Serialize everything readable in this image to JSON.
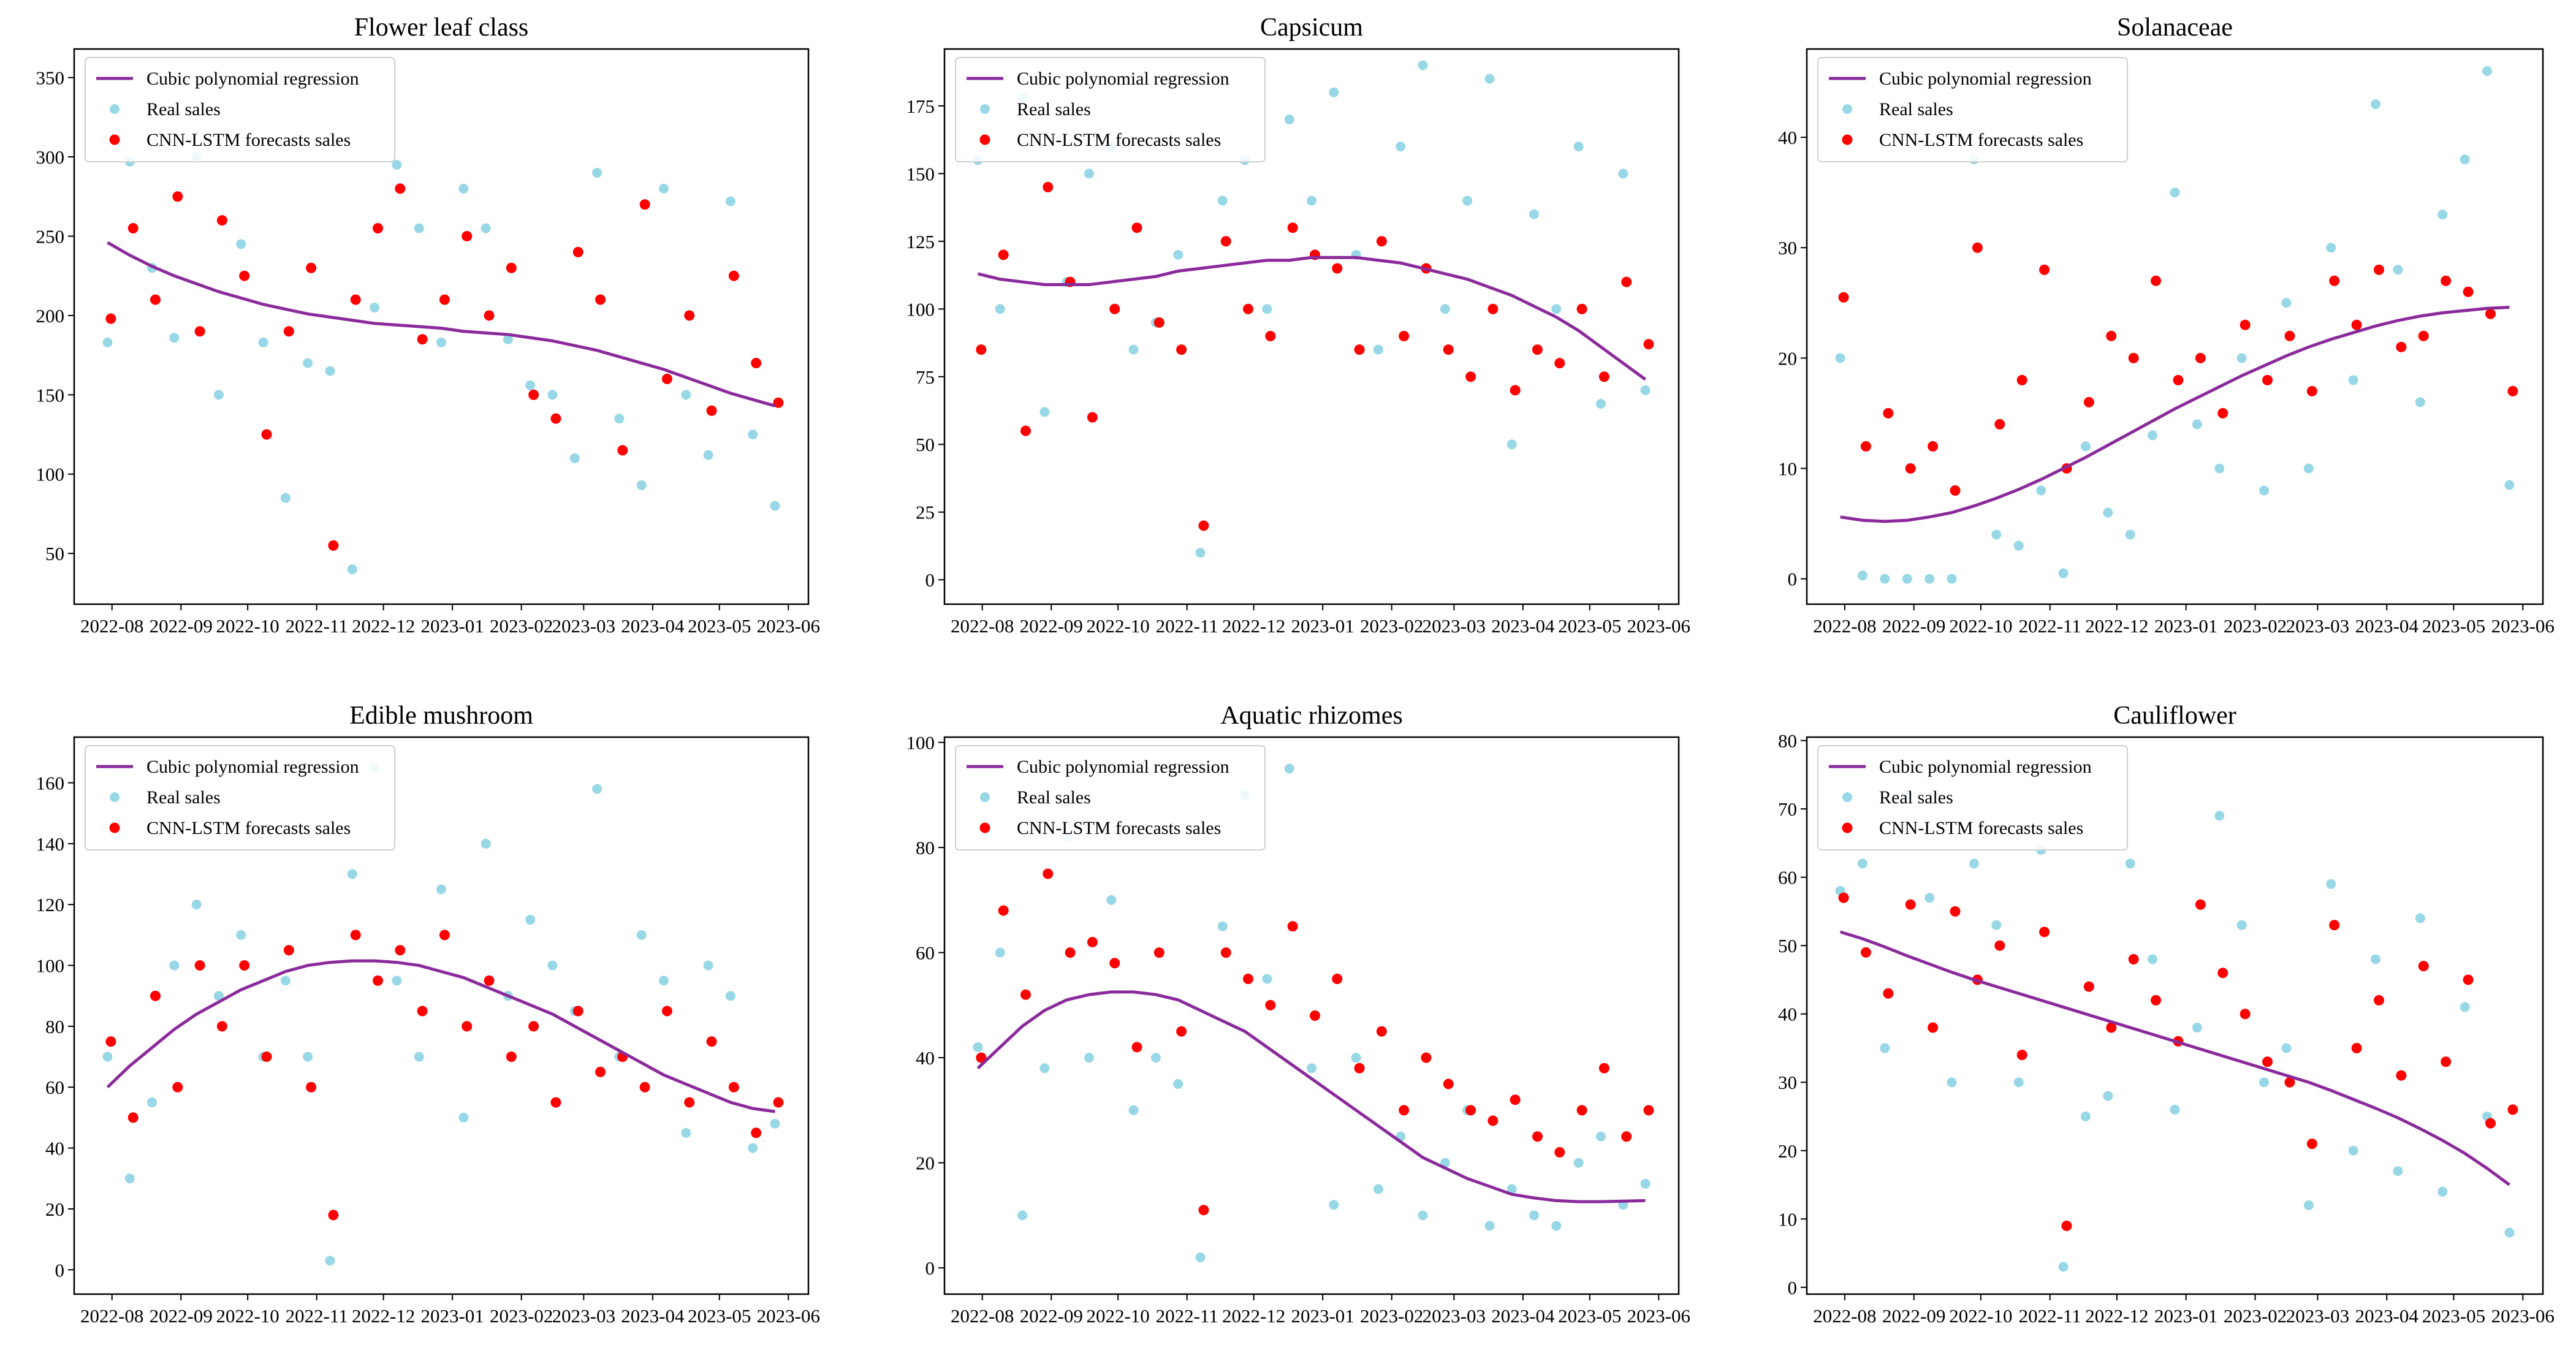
{
  "colors": {
    "real": "#98d8e6",
    "forecast": "#ff0000",
    "regression": "#8a2a9b"
  },
  "legend": {
    "regression": "Cubic polynomial regression",
    "real": "Real sales",
    "forecast": "CNN-LSTM forecasts sales"
  },
  "x_ticks": {
    "labels": [
      "2022-08",
      "2022-09",
      "2022-10",
      "2022-11",
      "2022-12",
      "2023-01",
      "2023-02",
      "2023-03",
      "2023-04",
      "2023-05",
      "2023-06"
    ],
    "day_offsets": [
      0,
      31,
      61,
      92,
      122,
      153,
      184,
      212,
      243,
      273,
      304
    ]
  },
  "x_days": [
    -2,
    8,
    18,
    28,
    38,
    48,
    58,
    68,
    78,
    88,
    98,
    108,
    118,
    128,
    138,
    148,
    158,
    168,
    178,
    188,
    198,
    208,
    218,
    228,
    238,
    248,
    258,
    268,
    278,
    288,
    298
  ],
  "x_day_origin": "2022-08-01",
  "xlim_days": [
    -17,
    313
  ],
  "chart_data": [
    {
      "type": "scatter",
      "title": "Flower leaf class",
      "ylim": [
        18,
        368
      ],
      "yticks": [
        50,
        100,
        150,
        200,
        250,
        300,
        350
      ],
      "regression": [
        246,
        238,
        231,
        225,
        220,
        215,
        211,
        207,
        204,
        201,
        199,
        197,
        195,
        194,
        193,
        192,
        190,
        189,
        188,
        186,
        184,
        181,
        178,
        174,
        170,
        166,
        161,
        156,
        151,
        147,
        143
      ],
      "real": [
        183,
        297,
        230,
        186,
        300,
        150,
        245,
        183,
        85,
        170,
        165,
        40,
        205,
        295,
        255,
        183,
        280,
        255,
        185,
        156,
        150,
        110,
        290,
        135,
        93,
        280,
        150,
        112,
        272,
        125,
        80
      ],
      "forecast": [
        198,
        255,
        210,
        275,
        190,
        260,
        225,
        125,
        190,
        230,
        55,
        210,
        255,
        280,
        185,
        210,
        250,
        200,
        230,
        150,
        135,
        240,
        210,
        115,
        270,
        160,
        200,
        140,
        225,
        170,
        145
      ]
    },
    {
      "type": "scatter",
      "title": "Capsicum",
      "ylim": [
        -9,
        196
      ],
      "yticks": [
        0,
        25,
        50,
        75,
        100,
        125,
        150,
        175
      ],
      "regression": [
        113,
        111,
        110,
        109,
        109,
        109,
        110,
        111,
        112,
        114,
        115,
        116,
        117,
        118,
        118,
        119,
        119,
        119,
        118,
        117,
        115,
        113,
        111,
        108,
        105,
        101,
        97,
        92,
        86,
        80,
        74
      ],
      "real": [
        155,
        100,
        178,
        62,
        110,
        150,
        160,
        85,
        95,
        120,
        10,
        140,
        155,
        100,
        170,
        140,
        180,
        120,
        85,
        160,
        190,
        100,
        140,
        185,
        50,
        135,
        100,
        160,
        65,
        150,
        70
      ],
      "forecast": [
        85,
        120,
        55,
        145,
        110,
        60,
        100,
        130,
        95,
        85,
        20,
        125,
        100,
        90,
        130,
        120,
        115,
        85,
        125,
        90,
        115,
        85,
        75,
        100,
        70,
        85,
        80,
        100,
        75,
        110,
        87
      ]
    },
    {
      "type": "scatter",
      "title": "Solanaceae",
      "ylim": [
        -2.3,
        48
      ],
      "yticks": [
        0,
        10,
        20,
        30,
        40
      ],
      "regression": [
        5.6,
        5.3,
        5.2,
        5.3,
        5.6,
        6.0,
        6.6,
        7.3,
        8.1,
        9.0,
        10.0,
        11.0,
        12.1,
        13.2,
        14.3,
        15.4,
        16.4,
        17.4,
        18.4,
        19.3,
        20.2,
        21.0,
        21.7,
        22.3,
        22.9,
        23.4,
        23.8,
        24.1,
        24.3,
        24.5,
        24.6
      ],
      "real": [
        20,
        0.3,
        0,
        0,
        0,
        0,
        38,
        4,
        3,
        8,
        0.5,
        12,
        6,
        4,
        13,
        35,
        14,
        10,
        20,
        8,
        25,
        10,
        30,
        18,
        43,
        28,
        16,
        33,
        38,
        46,
        8.5
      ],
      "forecast": [
        25.5,
        12,
        15,
        10,
        12,
        8,
        30,
        14,
        18,
        28,
        10,
        16,
        22,
        20,
        27,
        18,
        20,
        15,
        23,
        18,
        22,
        17,
        27,
        23,
        28,
        21,
        22,
        27,
        26,
        24,
        17
      ]
    },
    {
      "type": "scatter",
      "title": "Edible mushroom",
      "ylim": [
        -8,
        175
      ],
      "yticks": [
        0,
        20,
        40,
        60,
        80,
        100,
        120,
        140,
        160
      ],
      "regression": [
        60,
        67,
        73,
        79,
        84,
        88,
        92,
        95,
        98,
        100,
        101,
        101.5,
        101.5,
        101,
        100,
        98,
        96,
        93,
        90,
        87,
        84,
        80,
        76,
        72,
        68,
        64,
        61,
        58,
        55,
        53,
        52
      ],
      "real": [
        70,
        30,
        55,
        100,
        120,
        90,
        110,
        70,
        95,
        70,
        3,
        130,
        165,
        95,
        70,
        125,
        50,
        140,
        90,
        115,
        100,
        85,
        158,
        70,
        110,
        95,
        45,
        100,
        90,
        40,
        48
      ],
      "forecast": [
        75,
        50,
        90,
        60,
        100,
        80,
        100,
        70,
        105,
        60,
        18,
        110,
        95,
        105,
        85,
        110,
        80,
        95,
        70,
        80,
        55,
        85,
        65,
        70,
        60,
        85,
        55,
        75,
        60,
        45,
        55
      ]
    },
    {
      "type": "scatter",
      "title": "Aquatic rhizomes",
      "ylim": [
        -5,
        101
      ],
      "yticks": [
        0,
        20,
        40,
        60,
        80,
        100
      ],
      "regression": [
        38,
        42,
        46,
        49,
        51,
        52,
        52.5,
        52.5,
        52,
        51,
        49,
        47,
        45,
        42,
        39,
        36,
        33,
        30,
        27,
        24,
        21,
        19,
        17,
        15.5,
        14,
        13.3,
        12.8,
        12.6,
        12.6,
        12.7,
        12.8
      ],
      "real": [
        42,
        60,
        10,
        38,
        82,
        40,
        70,
        30,
        40,
        35,
        2,
        65,
        90,
        55,
        95,
        38,
        12,
        40,
        15,
        25,
        10,
        20,
        30,
        8,
        15,
        10,
        8,
        20,
        25,
        12,
        16
      ],
      "forecast": [
        40,
        68,
        52,
        75,
        60,
        62,
        58,
        42,
        60,
        45,
        11,
        60,
        55,
        50,
        65,
        48,
        55,
        38,
        45,
        30,
        40,
        35,
        30,
        28,
        32,
        25,
        22,
        30,
        38,
        25,
        30
      ]
    },
    {
      "type": "scatter",
      "title": "Cauliflower",
      "ylim": [
        -1,
        80.5
      ],
      "yticks": [
        0,
        10,
        20,
        30,
        40,
        50,
        60,
        70,
        80
      ],
      "regression": [
        52,
        51,
        49.8,
        48.5,
        47.3,
        46.1,
        45,
        44,
        43,
        42,
        41,
        40,
        39,
        38,
        37,
        36,
        35,
        34,
        33,
        32,
        31,
        30,
        28.8,
        27.5,
        26.2,
        24.8,
        23.2,
        21.5,
        19.6,
        17.4,
        15
      ],
      "real": [
        58,
        62,
        35,
        72,
        57,
        30,
        62,
        53,
        30,
        64,
        3,
        25,
        28,
        62,
        48,
        26,
        38,
        69,
        53,
        30,
        35,
        12,
        59,
        20,
        48,
        17,
        54,
        14,
        41,
        25,
        8
      ],
      "forecast": [
        57,
        49,
        43,
        56,
        38,
        55,
        45,
        50,
        34,
        52,
        9,
        44,
        38,
        48,
        42,
        36,
        56,
        46,
        40,
        33,
        30,
        21,
        53,
        35,
        42,
        31,
        47,
        33,
        45,
        24,
        26
      ]
    }
  ]
}
